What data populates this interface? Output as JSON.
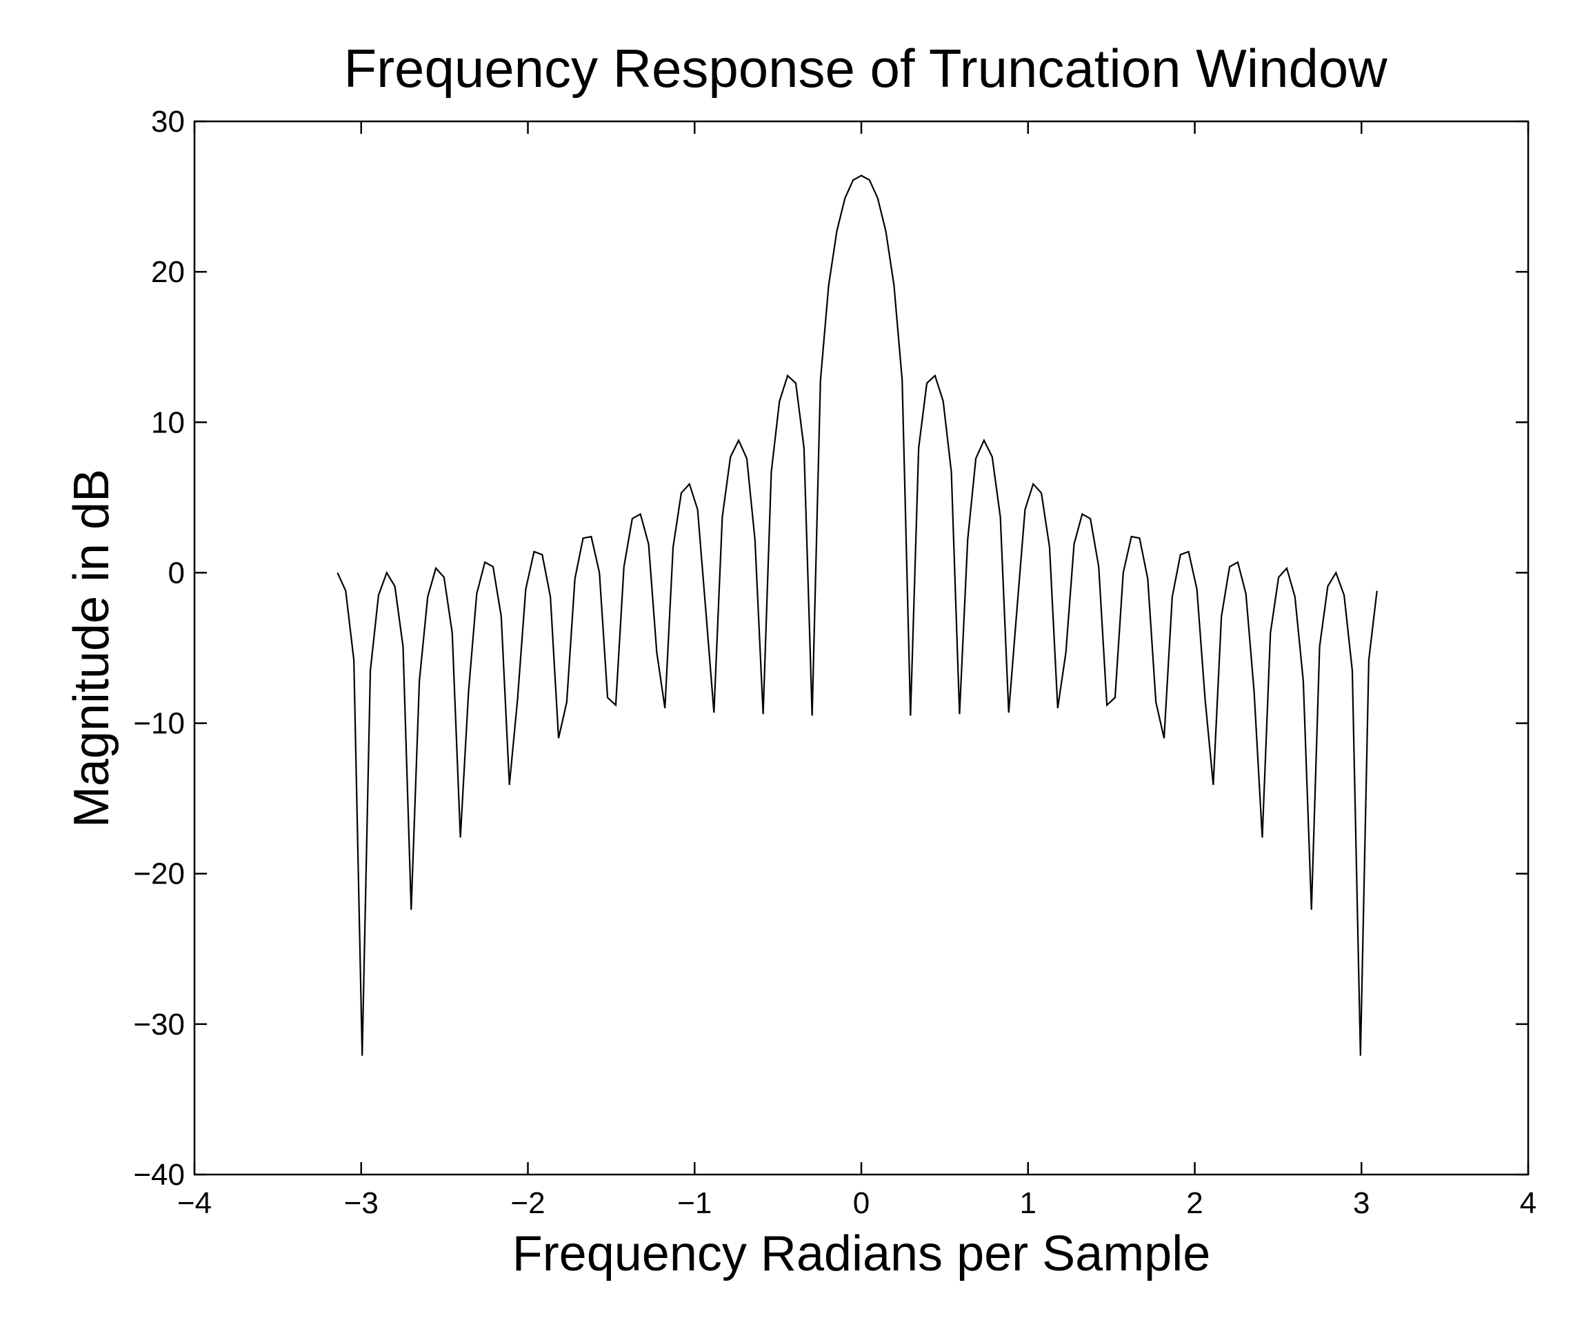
{
  "chart_data": {
    "type": "line",
    "title": "Frequency Response of Truncation Window",
    "xlabel": "Frequency Radians per Sample",
    "ylabel": "Magnitude in dB",
    "xlim": [
      -4,
      4
    ],
    "ylim": [
      -40,
      30
    ],
    "xticks": [
      -4,
      -3,
      -2,
      -1,
      0,
      1,
      2,
      3,
      4
    ],
    "yticks": [
      -40,
      -30,
      -20,
      -10,
      0,
      10,
      20,
      30
    ],
    "xtick_labels": [
      "−4",
      "−3",
      "−2",
      "−1",
      "0",
      "1",
      "2",
      "3",
      "4"
    ],
    "ytick_labels": [
      "−40",
      "−30",
      "−20",
      "−10",
      "0",
      "10",
      "20",
      "30"
    ],
    "grid": false,
    "box": true,
    "line_color": "#000000",
    "series": [
      {
        "x": [
          -3.142,
          -3.093,
          -3.044,
          -2.994,
          -2.945,
          -2.896,
          -2.847,
          -2.798,
          -2.749,
          -2.7,
          -2.651,
          -2.601,
          -2.552,
          -2.503,
          -2.454,
          -2.405,
          -2.356,
          -2.307,
          -2.258,
          -2.209,
          -2.16,
          -2.111,
          -2.062,
          -2.013,
          -1.963,
          -1.914,
          -1.865,
          -1.816,
          -1.767,
          -1.718,
          -1.669,
          -1.62,
          -1.571,
          -1.522,
          -1.473,
          -1.424,
          -1.374,
          -1.325,
          -1.276,
          -1.227,
          -1.178,
          -1.129,
          -1.08,
          -1.031,
          -0.982,
          -0.933,
          -0.884,
          -0.834,
          -0.785,
          -0.736,
          -0.687,
          -0.638,
          -0.589,
          -0.54,
          -0.491,
          -0.442,
          -0.393,
          -0.344,
          -0.295,
          -0.245,
          -0.196,
          -0.147,
          -0.098,
          -0.049,
          0.0,
          0.049,
          0.098,
          0.147,
          0.196,
          0.245,
          0.295,
          0.344,
          0.393,
          0.442,
          0.491,
          0.54,
          0.589,
          0.638,
          0.687,
          0.736,
          0.785,
          0.834,
          0.884,
          0.933,
          0.982,
          1.031,
          1.08,
          1.129,
          1.178,
          1.227,
          1.276,
          1.325,
          1.374,
          1.424,
          1.473,
          1.522,
          1.571,
          1.62,
          1.669,
          1.718,
          1.767,
          1.816,
          1.865,
          1.914,
          1.963,
          2.013,
          2.062,
          2.111,
          2.16,
          2.209,
          2.258,
          2.307,
          2.356,
          2.405,
          2.454,
          2.503,
          2.552,
          2.601,
          2.651,
          2.7,
          2.749,
          2.798,
          2.847,
          2.896,
          2.945,
          2.994,
          3.044,
          3.093
        ],
        "values": [
          0.0,
          -1.2,
          -5.8,
          -32.1,
          -6.5,
          -1.5,
          0.0,
          -0.9,
          -4.9,
          -22.4,
          -7.2,
          -1.6,
          0.3,
          -0.3,
          -4.0,
          -17.6,
          -7.9,
          -1.4,
          0.7,
          0.4,
          -2.9,
          -14.1,
          -8.4,
          -1.1,
          1.4,
          1.2,
          -1.6,
          -11.0,
          -8.6,
          -0.4,
          2.3,
          2.4,
          0.0,
          -8.3,
          -8.8,
          0.4,
          3.6,
          3.9,
          1.9,
          -5.3,
          -9.0,
          1.7,
          5.3,
          5.9,
          4.2,
          -2.5,
          -9.3,
          3.7,
          7.7,
          8.8,
          7.6,
          2.2,
          -9.4,
          6.7,
          11.4,
          13.1,
          12.6,
          8.3,
          -9.5,
          12.8,
          19.1,
          22.7,
          24.9,
          26.1,
          26.4,
          26.1,
          24.9,
          22.7,
          19.1,
          12.8,
          -9.5,
          8.3,
          12.6,
          13.1,
          11.4,
          6.7,
          -9.4,
          2.2,
          7.6,
          8.8,
          7.7,
          3.7,
          -9.3,
          -2.5,
          4.2,
          5.9,
          5.3,
          1.7,
          -9.0,
          -5.3,
          1.9,
          3.9,
          3.6,
          0.4,
          -8.8,
          -8.3,
          0.0,
          2.4,
          2.3,
          -0.4,
          -8.6,
          -11.0,
          -1.6,
          1.2,
          1.4,
          -1.1,
          -8.4,
          -14.1,
          -2.9,
          0.4,
          0.7,
          -1.4,
          -7.9,
          -17.6,
          -4.0,
          -0.3,
          0.3,
          -1.6,
          -7.2,
          -22.4,
          -4.9,
          -0.9,
          0.0,
          -1.5,
          -6.5,
          -32.1,
          -5.8,
          -1.2
        ]
      }
    ]
  }
}
